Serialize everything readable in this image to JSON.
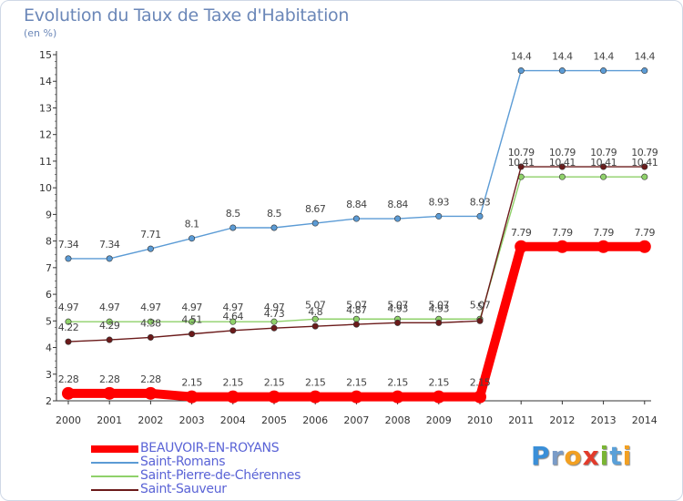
{
  "chart_data": {
    "type": "line",
    "title": "Evolution du Taux de Taxe d'Habitation",
    "subtitle": "(en %)",
    "xlabel": "",
    "ylabel": "",
    "ylim": [
      2,
      15
    ],
    "x": [
      2000,
      2001,
      2002,
      2003,
      2004,
      2005,
      2006,
      2007,
      2008,
      2009,
      2010,
      2011,
      2012,
      2013,
      2014
    ],
    "y_ticks": [
      2,
      3,
      4,
      5,
      6,
      7,
      8,
      9,
      10,
      11,
      12,
      13,
      14,
      15
    ],
    "grid": false,
    "legend_position": "bottom-left",
    "series": [
      {
        "name": "BEAUVOIR-EN-ROYANS",
        "color": "#ff0000",
        "values": [
          2.28,
          2.28,
          2.28,
          2.15,
          2.15,
          2.15,
          2.15,
          2.15,
          2.15,
          2.15,
          2.15,
          7.79,
          7.79,
          7.79,
          7.79
        ],
        "labels": [
          "2.28",
          "2.28",
          "2.28",
          "2.15",
          "2.15",
          "2.15",
          "2.15",
          "2.15",
          "2.15",
          "2.15",
          "2.15",
          "7.79",
          "7.79",
          "7.79",
          "7.79"
        ]
      },
      {
        "name": "Saint-Romans",
        "color": "#5b9bd5",
        "values": [
          7.34,
          7.34,
          7.71,
          8.1,
          8.5,
          8.5,
          8.67,
          8.84,
          8.84,
          8.93,
          8.93,
          14.4,
          14.4,
          14.4,
          14.4
        ],
        "labels": [
          "7.34",
          "7.34",
          "7.71",
          "8.1",
          "8.5",
          "8.5",
          "8.67",
          "8.84",
          "8.84",
          "8.93",
          "8.93",
          "14.4",
          "14.4",
          "14.4",
          "14.4"
        ]
      },
      {
        "name": "Saint-Pierre-de-Chérennes",
        "color": "#8fd16a",
        "values": [
          4.97,
          4.97,
          4.97,
          4.97,
          4.97,
          4.97,
          5.07,
          5.07,
          5.07,
          5.07,
          5.07,
          10.41,
          10.41,
          10.41,
          10.41
        ],
        "labels": [
          "4.97",
          "4.97",
          "4.97",
          "4.97",
          "4.97",
          "4.97",
          "5.07",
          "5.07",
          "5.07",
          "5.07",
          "5.07",
          "10.41",
          "10.41",
          "10.41",
          "10.41"
        ]
      },
      {
        "name": "Saint-Sauveur",
        "color": "#6b1a1a",
        "values": [
          4.22,
          4.29,
          4.38,
          4.51,
          4.64,
          4.73,
          4.8,
          4.87,
          4.93,
          4.93,
          5.0,
          10.79,
          10.79,
          10.79,
          10.79
        ],
        "labels": [
          "4.22",
          "4.29",
          "4.38",
          "4.51",
          "4.64",
          "4.73",
          "4.8",
          "4.87",
          "4.93",
          "4.93",
          "5",
          "10.79",
          "10.79",
          "10.79",
          "10.79"
        ]
      }
    ]
  },
  "logo": {
    "letters": [
      "P",
      "r",
      "o",
      "x",
      "i",
      "t",
      "i"
    ],
    "colors": [
      "#3a8fd8",
      "#7a9cc8",
      "#f2a022",
      "#e23b2b",
      "#7ab534",
      "#5aa0d8",
      "#f2a022"
    ]
  }
}
